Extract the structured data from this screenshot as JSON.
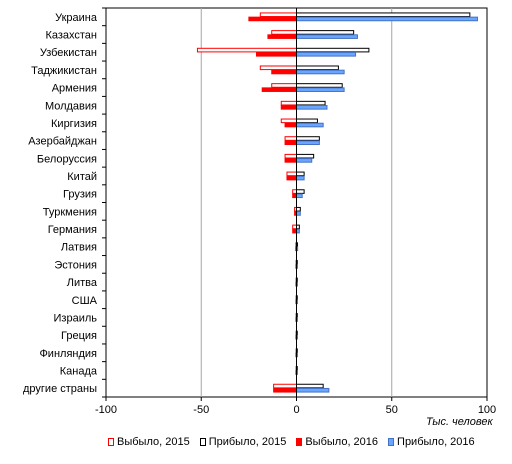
{
  "chart_data": {
    "type": "bar",
    "orientation": "horizontal",
    "categories": [
      "Украина",
      "Казахстан",
      "Узбекистан",
      "Таджикистан",
      "Армения",
      "Молдавия",
      "Киргизия",
      "Азербайджан",
      "Белоруссия",
      "Китай",
      "Грузия",
      "Туркмения",
      "Германия",
      "Латвия",
      "Эстония",
      "Литва",
      "США",
      "Израиль",
      "Греция",
      "Финляндия",
      "Канада",
      "другие страны"
    ],
    "series": [
      {
        "name": "Выбыло, 2015",
        "color": "#ff0000",
        "fill": "#ffffff",
        "values": [
          -19,
          -13,
          -52,
          -19,
          -13,
          -8,
          -8,
          -6,
          -6,
          -5,
          -2,
          -1,
          -2,
          -0.3,
          -0.2,
          -0.2,
          -0.2,
          -0.2,
          -0.2,
          -0.2,
          -0.2,
          -12
        ]
      },
      {
        "name": "Прибыло, 2015",
        "color": "#000000",
        "fill": "#ffffff",
        "values": [
          91,
          30,
          38,
          22,
          24,
          15,
          11,
          12,
          9,
          4,
          4,
          2,
          1.5,
          0.5,
          0.4,
          0.4,
          0.4,
          0.4,
          0.4,
          0.4,
          0.4,
          14
        ]
      },
      {
        "name": "Выбыло, 2016",
        "color": "#ff0000",
        "fill": "#ff0000",
        "values": [
          -25,
          -15,
          -21,
          -13,
          -18,
          -8,
          -6,
          -6,
          -6,
          -5,
          -2,
          -1,
          -2,
          -0.4,
          -0.3,
          -0.3,
          -0.3,
          -0.3,
          -0.3,
          -0.3,
          -0.3,
          -12
        ]
      },
      {
        "name": "Прибыло, 2016",
        "color": "#4472c4",
        "fill": "#6aa6ff",
        "values": [
          95,
          32,
          31,
          25,
          25,
          16,
          14,
          12,
          8,
          4,
          3,
          2,
          1.5,
          0.6,
          0.5,
          0.5,
          0.5,
          0.5,
          0.5,
          0.5,
          0.5,
          17
        ]
      }
    ],
    "xlim": [
      -100,
      100
    ],
    "xticks": [
      "-100",
      "-50",
      "0",
      "50",
      "100"
    ],
    "xlabel": "Тыс. человек",
    "grid": true,
    "legend_position": "bottom"
  }
}
